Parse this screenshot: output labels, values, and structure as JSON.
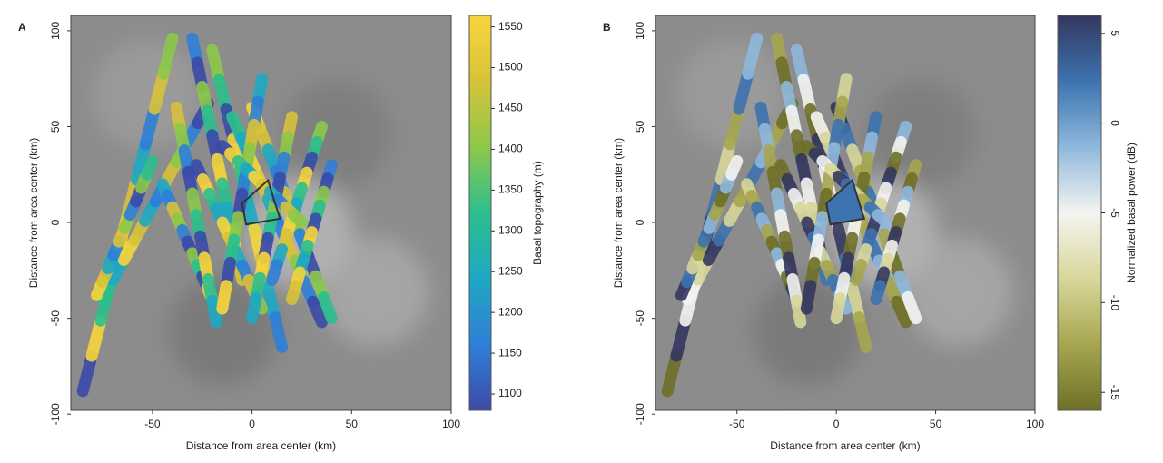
{
  "chart_data": [
    {
      "type": "track-map",
      "panel_label": "A",
      "xlabel": "Distance from area center (km)",
      "ylabel": "Distance from area center (km)",
      "xlim": [
        -91,
        100
      ],
      "xticks": [
        -50,
        0,
        50,
        100
      ],
      "ylim": [
        -98,
        108
      ],
      "yticks": [
        -100,
        -50,
        0,
        50,
        100
      ],
      "colorbar_label": "Basal topography (m)",
      "clim": [
        1080,
        1564
      ],
      "cticks": [
        1100,
        1150,
        1200,
        1250,
        1300,
        1350,
        1400,
        1450,
        1500,
        1550
      ],
      "colormap": [
        "#3b4aa8",
        "#2f7fd8",
        "#1fa8c4",
        "#2cbf8e",
        "#8cc84a",
        "#d8c23a",
        "#f7d63a"
      ]
    },
    {
      "type": "track-map",
      "panel_label": "B",
      "xlabel": "Distance from area center (km)",
      "ylabel": "Distance from area center (km)",
      "xlim": [
        -91,
        100
      ],
      "xticks": [
        -50,
        0,
        50,
        100
      ],
      "ylim": [
        -98,
        108
      ],
      "yticks": [
        -100,
        -50,
        0,
        50,
        100
      ],
      "colorbar_label": "Normalized basal power (dB)",
      "clim": [
        -16,
        6
      ],
      "cticks": [
        -15,
        -10,
        -5,
        0,
        5
      ],
      "colormap": [
        "#6f7028",
        "#a6a650",
        "#d9d79a",
        "#f4f4f0",
        "#8fb8dc",
        "#3d73b0",
        "#34375f"
      ]
    }
  ]
}
